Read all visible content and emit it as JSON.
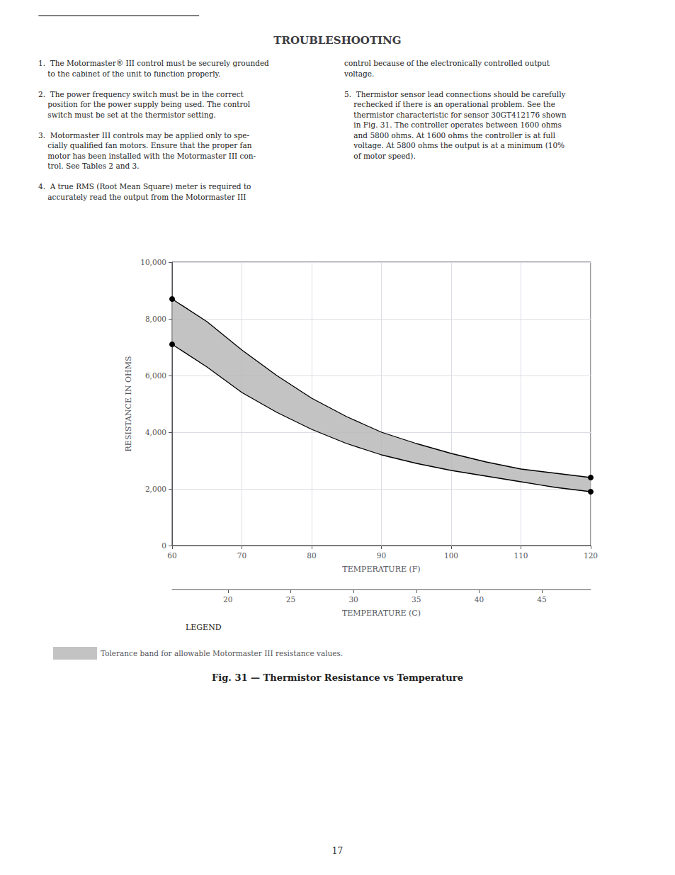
{
  "chart_data": {
    "type": "line",
    "title": "TROUBLESHOOTING",
    "caption": "Fig. 31 — Thermistor Resistance vs Temperature",
    "text_columns": [
      "1.  The Motormaster® III control must be securely grounded\n    to the cabinet of the unit to function properly.\n\n2.  The power frequency switch must be in the correct\n    position for the power supply being used. The control\n    switch must be set at the thermistor setting.\n\n3.  Motormaster III controls may be applied only to spe-\n    cially qualified fan motors. Ensure that the proper fan\n    motor has been installed with the Motormaster III con-\n    trol. See Tables 2 and 3.\n\n4.  A true RMS (Root Mean Square) meter is required to\n    accurately read the output from the Motormaster III",
      "control because of the electronically controlled output\nvoltage.\n\n5.  Thermistor sensor lead connections should be carefully\n    rechecked if there is an operational problem. See the\n    thermistor characteristic for sensor 30GT412176 shown\n    in Fig. 31. The controller operates between 1600 ohms\n    and 5800 ohms. At 1600 ohms the controller is at full\n    voltage. At 5800 ohms the output is at a minimum (10%\n    of motor speed)."
    ],
    "legend_title": "LEGEND",
    "page_number": "17",
    "x_label": "TEMPERATURE (F)",
    "x2_label": "TEMPERATURE (C)",
    "y_label": "RESISTANCE IN OHMS",
    "xlim": [
      60,
      120
    ],
    "xticks": [
      60,
      70,
      80,
      90,
      100,
      110,
      120
    ],
    "x2lim": [
      15.555555555555555,
      48.888888888888886
    ],
    "x2ticks": [
      20,
      25,
      30,
      35,
      40,
      45
    ],
    "ylim": [
      0,
      10000
    ],
    "yticks": [
      0,
      2000,
      4000,
      6000,
      8000,
      10000
    ],
    "grid": true,
    "x": [
      60,
      65,
      70,
      75,
      80,
      85,
      90,
      95,
      100,
      105,
      110,
      115,
      120
    ],
    "series": [
      {
        "type": "band",
        "name": "Tolerance band for allowable Motormaster III resistance values.",
        "color": "#b8b8b8",
        "lower": [
          7100,
          6300,
          5400,
          4700,
          4100,
          3600,
          3200,
          2900,
          2650,
          2450,
          2250,
          2050,
          1900
        ],
        "upper": [
          8700,
          7900,
          6900,
          6000,
          5200,
          4550,
          4000,
          3600,
          3250,
          2950,
          2700,
          2550,
          2400
        ]
      },
      {
        "type": "line",
        "color": "#000000",
        "marker": "circle",
        "values": [
          8700,
          7900,
          6900,
          6000,
          5200,
          4550,
          4000,
          3600,
          3250,
          2950,
          2700,
          2550,
          2400
        ]
      },
      {
        "type": "line",
        "color": "#000000",
        "marker": "circle",
        "values": [
          7100,
          6300,
          5400,
          4700,
          4100,
          3600,
          3200,
          2900,
          2650,
          2450,
          2250,
          2050,
          1900
        ]
      }
    ]
  }
}
